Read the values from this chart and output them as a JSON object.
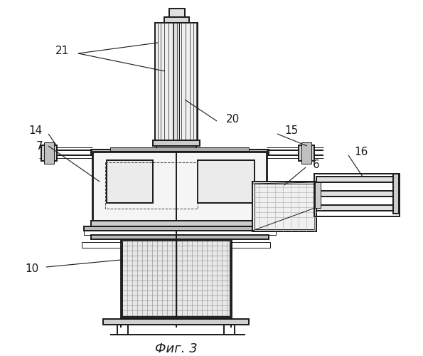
{
  "title": "Фиг. 3",
  "title_fontsize": 13,
  "bg_color": "#ffffff",
  "line_color": "#1a1a1a",
  "dashed_color": "#444444",
  "lw_main": 1.4,
  "lw_thin": 0.7,
  "lw_thick": 2.0
}
